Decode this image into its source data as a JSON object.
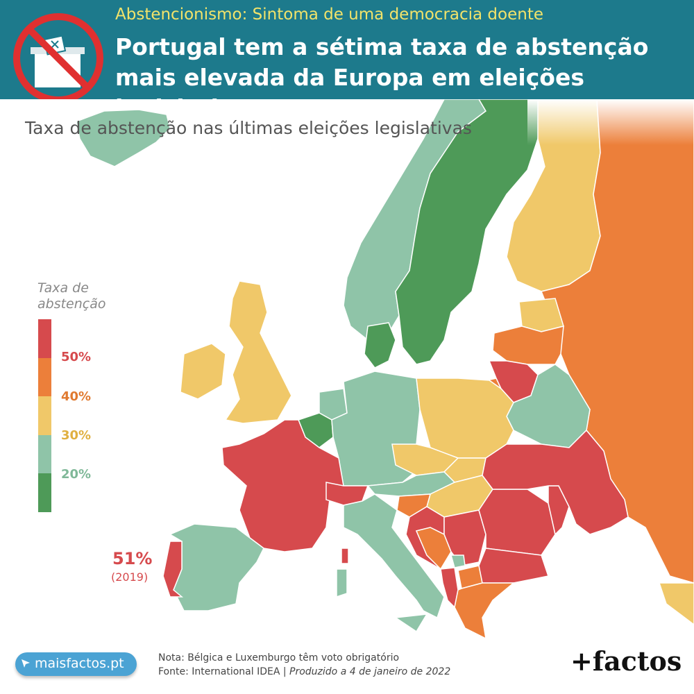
{
  "header": {
    "kicker": "Abstencionismo: Sintoma de uma democracia doente",
    "headline": "Portugal tem a sétima taxa de abstenção mais elevada da Europa em eleições legislativas",
    "icon": "no-voting-ballot-box-icon"
  },
  "map": {
    "subtitle": "Taxa de abstenção nas últimas eleições legislativas",
    "legend": {
      "title_line1": "Taxa de",
      "title_line2": "abstenção",
      "bins": [
        {
          "label": "50%",
          "color": "#d64a4d",
          "label_color": "#d64a4d"
        },
        {
          "label": "40%",
          "color": "#ec7f3a",
          "label_color": "#e07a30"
        },
        {
          "label": "30%",
          "color": "#f0c869",
          "label_color": "#e0b040"
        },
        {
          "label": "20%",
          "color": "#8fc4a8",
          "label_color": "#7fb898"
        },
        {
          "label": "",
          "color": "#4e9a58",
          "label_color": "#4e9a58"
        }
      ]
    },
    "annotation": {
      "value": "51%",
      "year": "(2019)"
    },
    "countries": [
      {
        "id": "PT",
        "color": "#d64a4d"
      },
      {
        "id": "ES",
        "color": "#8fc4a8"
      },
      {
        "id": "FR",
        "color": "#d64a4d"
      },
      {
        "id": "BE",
        "color": "#4e9a58"
      },
      {
        "id": "CH",
        "color": "#d64a4d"
      },
      {
        "id": "IT",
        "color": "#8fc4a8"
      },
      {
        "id": "UK",
        "color": "#f0c869"
      },
      {
        "id": "IE",
        "color": "#f0c869"
      },
      {
        "id": "NL",
        "color": "#8fc4a8"
      },
      {
        "id": "DE",
        "color": "#8fc4a8"
      },
      {
        "id": "DK",
        "color": "#4e9a58"
      },
      {
        "id": "NO",
        "color": "#8fc4a8"
      },
      {
        "id": "SE",
        "color": "#4e9a58"
      },
      {
        "id": "FI",
        "color": "#f0c869"
      },
      {
        "id": "IS",
        "color": "#8fc4a8"
      },
      {
        "id": "EE",
        "color": "#f0c869"
      },
      {
        "id": "LV",
        "color": "#ec7f3a"
      },
      {
        "id": "LT",
        "color": "#d64a4d"
      },
      {
        "id": "PL",
        "color": "#f0c869"
      },
      {
        "id": "CZ",
        "color": "#f0c869"
      },
      {
        "id": "SK",
        "color": "#f0c869"
      },
      {
        "id": "AT",
        "color": "#8fc4a8"
      },
      {
        "id": "HU",
        "color": "#f0c869"
      },
      {
        "id": "SI",
        "color": "#ec7f3a"
      },
      {
        "id": "HR",
        "color": "#d64a4d"
      },
      {
        "id": "BA",
        "color": "#ec7f3a"
      },
      {
        "id": "RS",
        "color": "#d64a4d"
      },
      {
        "id": "RO",
        "color": "#d64a4d"
      },
      {
        "id": "MD",
        "color": "#d64a4d"
      },
      {
        "id": "UA",
        "color": "#d64a4d"
      },
      {
        "id": "BY",
        "color": "#8fc4a8"
      },
      {
        "id": "RU",
        "color": "#ec7f3a"
      },
      {
        "id": "BG",
        "color": "#d64a4d"
      },
      {
        "id": "MK",
        "color": "#ec7f3a"
      },
      {
        "id": "AL",
        "color": "#d64a4d"
      },
      {
        "id": "GR",
        "color": "#ec7f3a"
      },
      {
        "id": "TR",
        "color": "#f0c869"
      },
      {
        "id": "KO",
        "color": "#8fc4a8"
      },
      {
        "id": "CO",
        "color": "#d64a4d"
      },
      {
        "id": "SA",
        "color": "#d64a4d"
      }
    ]
  },
  "footer": {
    "site": "maisfactos.pt",
    "note": "Nota: Bélgica e Luxemburgo têm voto obrigatório",
    "source": "Fonte: International IDEA",
    "separator": " | ",
    "produced": "Produzido a 4 de janeiro de 2022",
    "brand": "+factos"
  }
}
